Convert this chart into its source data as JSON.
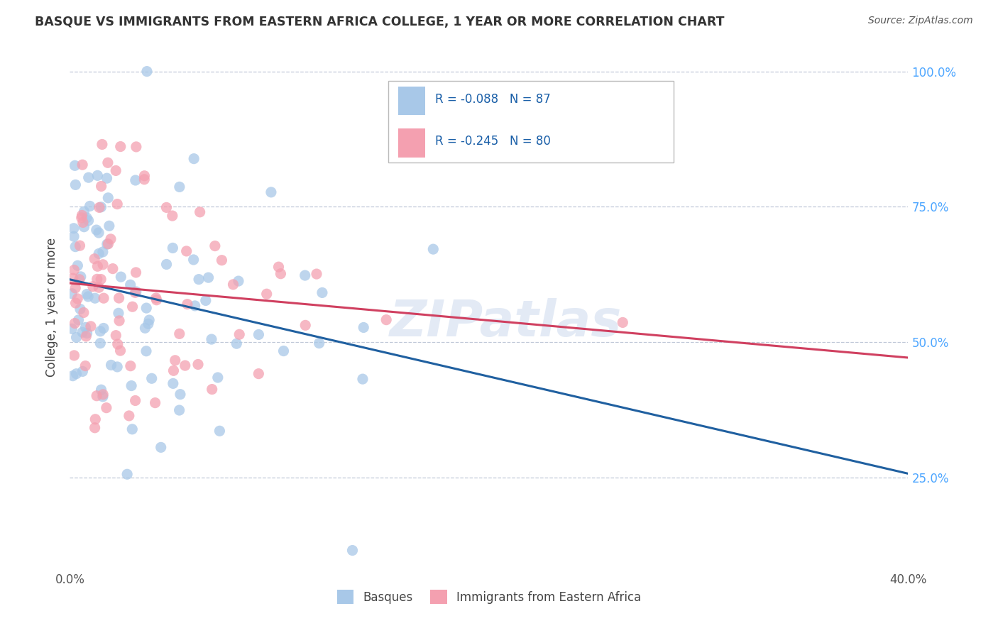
{
  "title": "BASQUE VS IMMIGRANTS FROM EASTERN AFRICA COLLEGE, 1 YEAR OR MORE CORRELATION CHART",
  "source": "Source: ZipAtlas.com",
  "ylabel": "College, 1 year or more",
  "xmin": 0.0,
  "xmax": 0.4,
  "ymin": 0.08,
  "ymax": 1.05,
  "yticks": [
    0.25,
    0.5,
    0.75,
    1.0
  ],
  "ytick_labels": [
    "25.0%",
    "50.0%",
    "75.0%",
    "100.0%"
  ],
  "xticks": [
    0.0,
    0.4
  ],
  "xtick_labels": [
    "0.0%",
    "40.0%"
  ],
  "legend_labels": [
    "Basques",
    "Immigrants from Eastern Africa"
  ],
  "blue_R": -0.088,
  "blue_N": 87,
  "pink_R": -0.245,
  "pink_N": 80,
  "blue_color": "#a8c8e8",
  "pink_color": "#f4a0b0",
  "blue_line_color": "#2060a0",
  "pink_line_color": "#d04060",
  "background_color": "#ffffff",
  "grid_color": "#c0c8d8",
  "title_color": "#333333",
  "watermark": "ZIPatlas",
  "legend_R_N_color": "#1a5fa8",
  "right_tick_color": "#4da6ff"
}
